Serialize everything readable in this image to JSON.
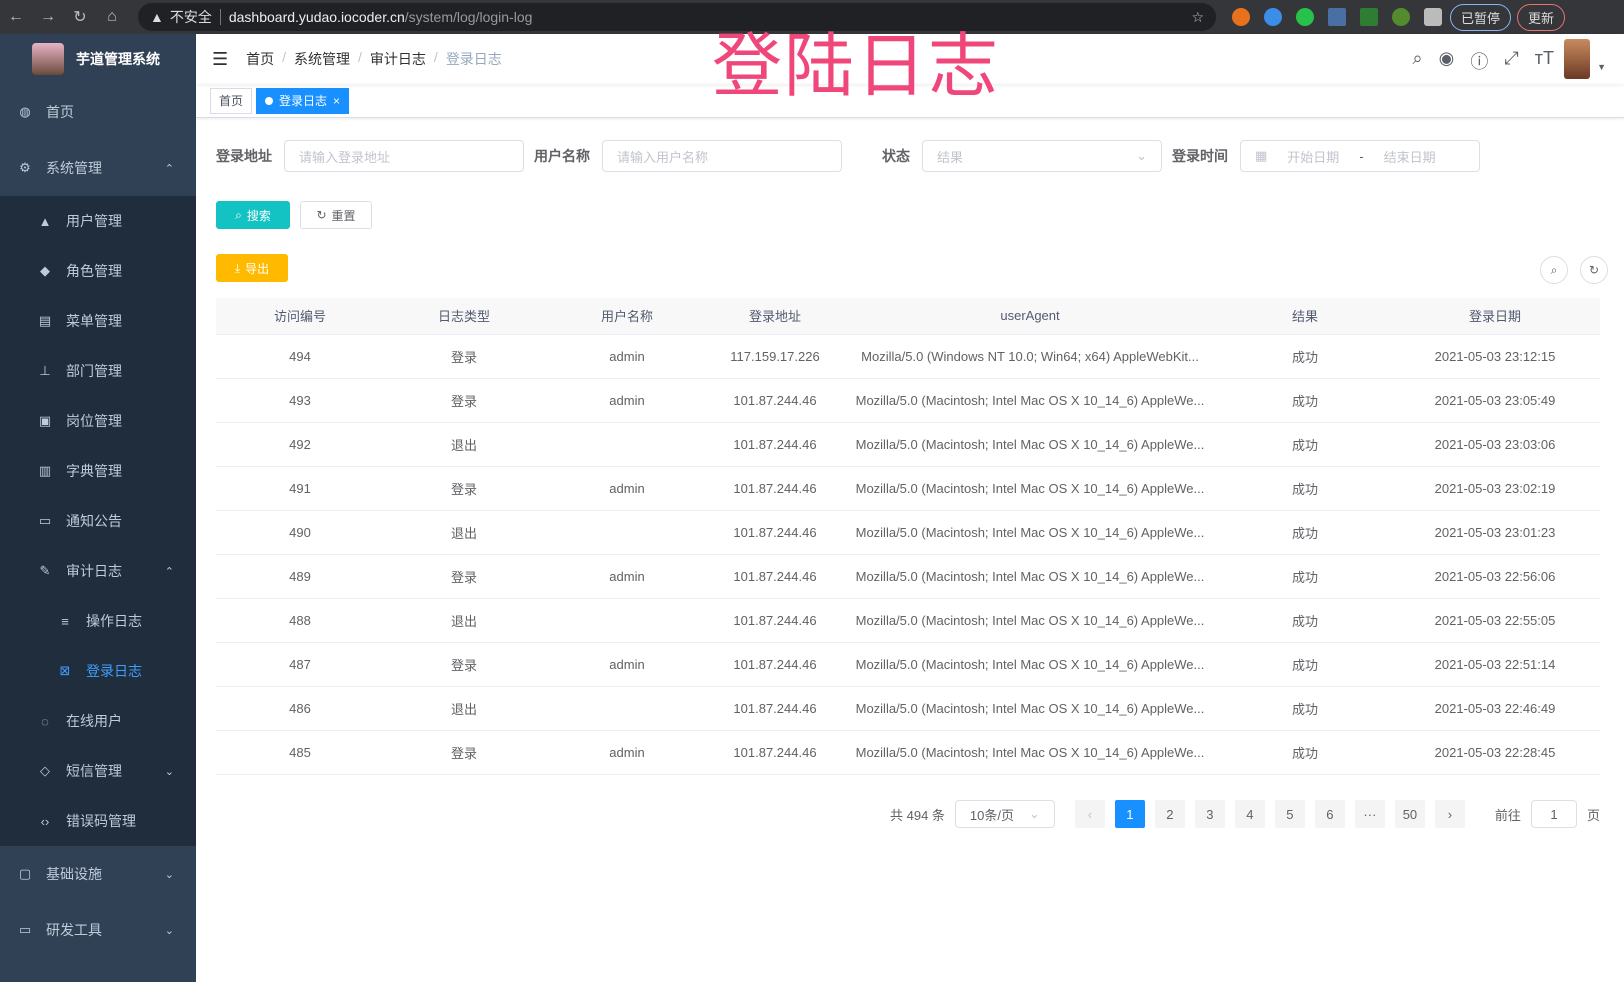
{
  "browser": {
    "warning": "不安全",
    "host": "dashboard.yudao.iocoder.cn",
    "path": "/system/log/login-log",
    "paused": "已暂停",
    "update": "更新"
  },
  "watermark": "登陆日志",
  "sidebar": {
    "title": "芋道管理系统",
    "items": [
      {
        "label": "首页",
        "icon": "dashboard-icon"
      },
      {
        "label": "系统管理",
        "icon": "gear-icon",
        "arrow": "⌃"
      },
      {
        "label": "用户管理",
        "icon": "user-icon"
      },
      {
        "label": "角色管理",
        "icon": "role-icon"
      },
      {
        "label": "菜单管理",
        "icon": "menu-icon"
      },
      {
        "label": "部门管理",
        "icon": "tree-icon"
      },
      {
        "label": "岗位管理",
        "icon": "post-icon"
      },
      {
        "label": "字典管理",
        "icon": "dict-icon"
      },
      {
        "label": "通知公告",
        "icon": "message-icon"
      },
      {
        "label": "审计日志",
        "icon": "edit-icon",
        "arrow": "⌃"
      },
      {
        "label": "操作日志",
        "icon": "form-icon"
      },
      {
        "label": "登录日志",
        "icon": "logininfor-icon"
      },
      {
        "label": "在线用户",
        "icon": "online-icon"
      },
      {
        "label": "短信管理",
        "icon": "shield-icon",
        "arrow": "⌄"
      },
      {
        "label": "错误码管理",
        "icon": "code-icon"
      },
      {
        "label": "基础设施",
        "icon": "monitor-icon",
        "arrow": "⌄"
      },
      {
        "label": "研发工具",
        "icon": "tool-icon",
        "arrow": "⌄"
      }
    ]
  },
  "breadcrumb": [
    "首页",
    "系统管理",
    "审计日志",
    "登录日志"
  ],
  "tags": {
    "home": "首页",
    "active": "登录日志",
    "close": "×"
  },
  "form": {
    "addr_label": "登录地址",
    "addr_ph": "请输入登录地址",
    "user_label": "用户名称",
    "user_ph": "请输入用户名称",
    "status_label": "状态",
    "status_ph": "结果",
    "time_label": "登录时间",
    "start_ph": "开始日期",
    "sep": "-",
    "end_ph": "结束日期"
  },
  "buttons": {
    "search": "搜索",
    "reset": "重置",
    "export": "导出"
  },
  "colors": {
    "sidebar": "#304156",
    "primary": "#1890ff",
    "search": "#13c2c2",
    "export": "#ffba00"
  },
  "table": {
    "columns": [
      "访问编号",
      "日志类型",
      "用户名称",
      "登录地址",
      "userAgent",
      "结果",
      "登录日期"
    ],
    "rows": [
      [
        "494",
        "登录",
        "admin",
        "117.159.17.226",
        "Mozilla/5.0 (Windows NT 10.0; Win64; x64) AppleWebKit...",
        "成功",
        "2021-05-03 23:12:15"
      ],
      [
        "493",
        "登录",
        "admin",
        "101.87.244.46",
        "Mozilla/5.0 (Macintosh; Intel Mac OS X 10_14_6) AppleWe...",
        "成功",
        "2021-05-03 23:05:49"
      ],
      [
        "492",
        "退出",
        "",
        "101.87.244.46",
        "Mozilla/5.0 (Macintosh; Intel Mac OS X 10_14_6) AppleWe...",
        "成功",
        "2021-05-03 23:03:06"
      ],
      [
        "491",
        "登录",
        "admin",
        "101.87.244.46",
        "Mozilla/5.0 (Macintosh; Intel Mac OS X 10_14_6) AppleWe...",
        "成功",
        "2021-05-03 23:02:19"
      ],
      [
        "490",
        "退出",
        "",
        "101.87.244.46",
        "Mozilla/5.0 (Macintosh; Intel Mac OS X 10_14_6) AppleWe...",
        "成功",
        "2021-05-03 23:01:23"
      ],
      [
        "489",
        "登录",
        "admin",
        "101.87.244.46",
        "Mozilla/5.0 (Macintosh; Intel Mac OS X 10_14_6) AppleWe...",
        "成功",
        "2021-05-03 22:56:06"
      ],
      [
        "488",
        "退出",
        "",
        "101.87.244.46",
        "Mozilla/5.0 (Macintosh; Intel Mac OS X 10_14_6) AppleWe...",
        "成功",
        "2021-05-03 22:55:05"
      ],
      [
        "487",
        "登录",
        "admin",
        "101.87.244.46",
        "Mozilla/5.0 (Macintosh; Intel Mac OS X 10_14_6) AppleWe...",
        "成功",
        "2021-05-03 22:51:14"
      ],
      [
        "486",
        "退出",
        "",
        "101.87.244.46",
        "Mozilla/5.0 (Macintosh; Intel Mac OS X 10_14_6) AppleWe...",
        "成功",
        "2021-05-03 22:46:49"
      ],
      [
        "485",
        "登录",
        "admin",
        "101.87.244.46",
        "Mozilla/5.0 (Macintosh; Intel Mac OS X 10_14_6) AppleWe...",
        "成功",
        "2021-05-03 22:28:45"
      ]
    ]
  },
  "pagination": {
    "total": "共 494 条",
    "size": "10条/页",
    "prev": "‹",
    "pages": [
      "1",
      "2",
      "3",
      "4",
      "5",
      "6",
      "···",
      "50"
    ],
    "current": "1",
    "next": "›",
    "goto": "前往",
    "goto_value": "1",
    "page_unit": "页"
  }
}
